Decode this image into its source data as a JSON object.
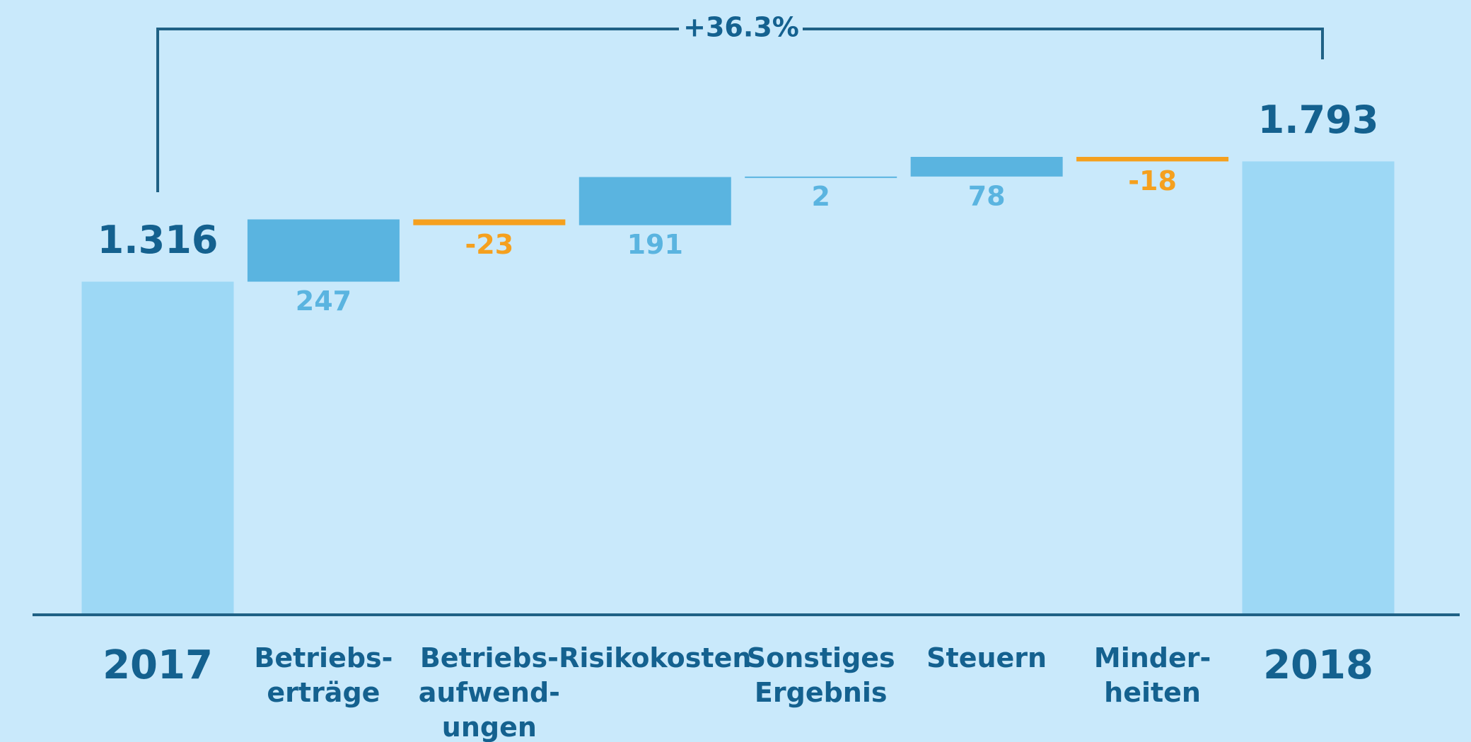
{
  "chart_data": {
    "type": "waterfall",
    "categories": [
      [
        "2017"
      ],
      [
        "Betriebs-",
        "erträge"
      ],
      [
        "Betriebs-",
        "aufwend-",
        "ungen"
      ],
      [
        "Risikokosten"
      ],
      [
        "Sonstiges",
        "Ergebnis"
      ],
      [
        "Steuern"
      ],
      [
        "Minder-",
        "heiten"
      ],
      [
        "2018"
      ]
    ],
    "values": [
      1316,
      247,
      -23,
      191,
      2,
      78,
      -18,
      1793
    ],
    "value_labels": [
      "1.316",
      "247",
      "-23",
      "191",
      "2",
      "78",
      "-18",
      "1.793"
    ],
    "colors": {
      "total": "#9dd8f5",
      "increase": "#5ab4e0",
      "decrease": "#f5a01e",
      "text": "#14618f"
    },
    "annotation": "+36.3%"
  }
}
